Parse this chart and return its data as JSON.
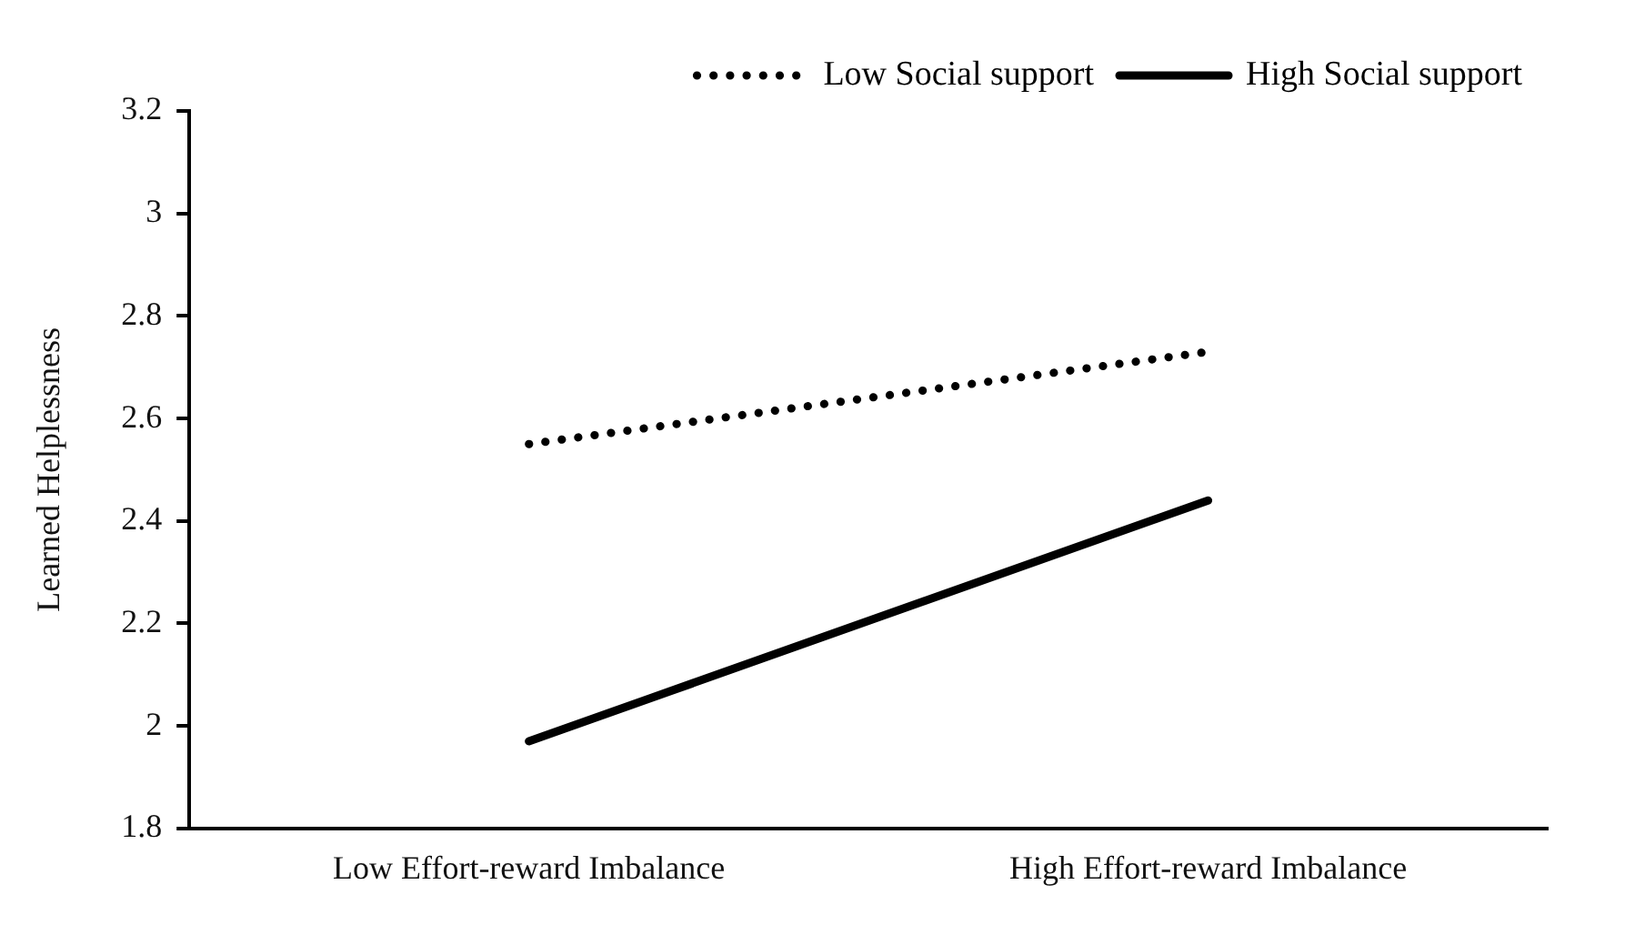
{
  "chart_data": {
    "type": "line",
    "ylabel": "Learned Helplessness",
    "categories": [
      "Low Effort-reward Imbalance",
      "High Effort-reward Imbalance"
    ],
    "series": [
      {
        "name": "Low Social support",
        "color": "#000000",
        "line_style": "dotted",
        "values": [
          2.55,
          2.73
        ]
      },
      {
        "name": "High Social support",
        "color": "#000000",
        "line_style": "solid",
        "values": [
          1.97,
          2.44
        ]
      }
    ],
    "ylim": [
      1.8,
      3.2
    ],
    "yticks": [
      1.8,
      2,
      2.2,
      2.4,
      2.6,
      2.8,
      3,
      3.2
    ],
    "grid": false,
    "legend": "top right",
    "marker": "none"
  }
}
